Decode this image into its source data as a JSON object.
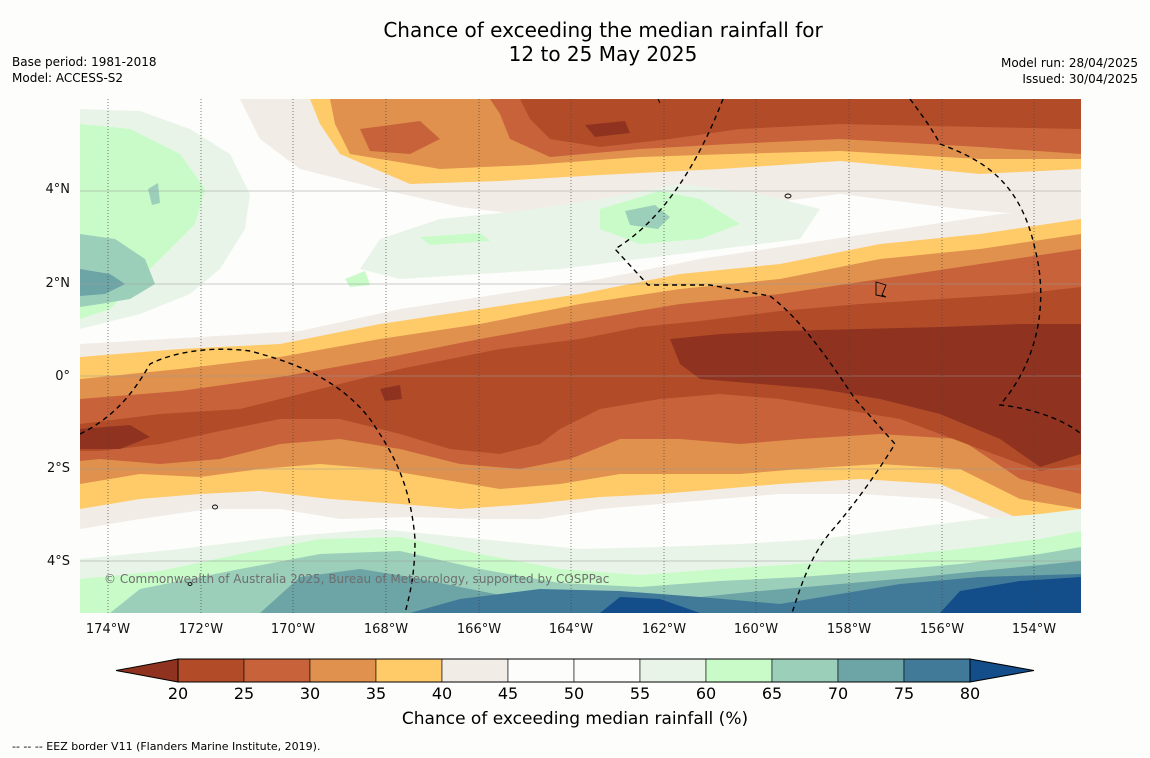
{
  "title": {
    "line1": "Chance of exceeding the median rainfall for",
    "line2": "12 to 25 May 2025"
  },
  "meta_left": {
    "base_period": "Base period: 1981-2018",
    "model": "Model: ACCESS-S2"
  },
  "meta_right": {
    "model_run": "Model run: 28/04/2025",
    "issued": "Issued: 30/04/2025"
  },
  "map": {
    "lat_labels": [
      "4°N",
      "2°N",
      "0°",
      "2°S",
      "4°S"
    ],
    "lon_labels": [
      "174°W",
      "172°W",
      "170°W",
      "168°W",
      "166°W",
      "164°W",
      "162°W",
      "160°W",
      "158°W",
      "156°W",
      "154°W"
    ],
    "copyright": "© Commonwealth of Australia 2025, Bureau of Meteorology, supported by COSPPac",
    "eez_style": "dashed",
    "gridlines": "dotted"
  },
  "colorbar": {
    "ticks": [
      "20",
      "25",
      "30",
      "35",
      "40",
      "45",
      "50",
      "55",
      "60",
      "65",
      "70",
      "75",
      "80"
    ],
    "colors": [
      "#8f3320",
      "#b24c28",
      "#c8623a",
      "#e0914e",
      "#fecb68",
      "#f2ece7",
      "#fdfdfb",
      "#fdfdfb",
      "#e9f4e8",
      "#c8fbc8",
      "#9ccfba",
      "#6da4a6",
      "#407a98",
      "#134d8a"
    ],
    "title": "Chance of exceeding median rainfall (%)"
  },
  "footer": "--  --  -- EEZ border V11 (Flanders Marine Institute, 2019)."
}
